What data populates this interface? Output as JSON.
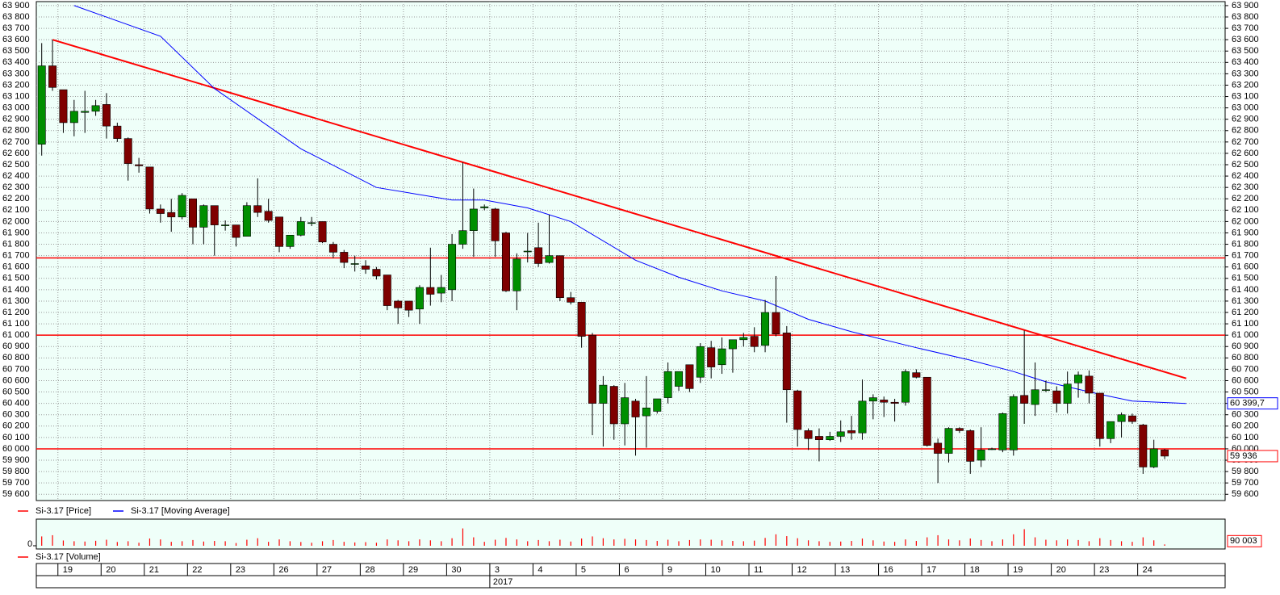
{
  "chart_data": {
    "type": "candlestick",
    "series": [
      {
        "name": "Si-3.17 [Price]",
        "color": "#ff0000",
        "up_color": "#008f00",
        "down_color": "#7f0000",
        "open": [
          62680,
          63370,
          63160,
          62870,
          62960,
          62970,
          63030,
          62840,
          62730,
          62500,
          62480,
          62110,
          62080,
          62040,
          62200,
          61950,
          62140,
          61970,
          61970,
          61870,
          62140,
          62090,
          62040,
          61780,
          61880,
          61990,
          62000,
          61800,
          61730,
          61630,
          61610,
          61580,
          61530,
          61300,
          61300,
          61230,
          61420,
          61370,
          61400,
          61800,
          61920,
          62120,
          62110,
          61900,
          61390,
          61740,
          61770,
          61640,
          61700,
          61330,
          61290,
          61000,
          60400,
          60550,
          60220,
          60420,
          60290,
          60330,
          60450,
          60550,
          60740,
          60630,
          60890,
          60740,
          60880,
          60960,
          60990,
          60910,
          61200,
          61020,
          60510,
          60160,
          60110,
          60080,
          60110,
          60160,
          60140,
          60420,
          60430,
          60410,
          60410,
          60670,
          60630,
          60050,
          59960,
          60180,
          60160,
          59900,
          60000,
          59990,
          59990,
          60470,
          60390,
          60520,
          60510,
          60400,
          60580,
          60640,
          60490,
          60090,
          60240,
          60290,
          60210,
          59840,
          59990
        ],
        "high": [
          63570,
          63600,
          63160,
          63070,
          63150,
          63070,
          63130,
          62870,
          62740,
          62560,
          62480,
          62150,
          62200,
          62250,
          62200,
          62150,
          62140,
          62010,
          61970,
          62170,
          62380,
          62200,
          62040,
          61880,
          62040,
          62040,
          62000,
          61820,
          61750,
          61700,
          61660,
          61600,
          61530,
          61310,
          61300,
          61440,
          61770,
          61530,
          61890,
          62520,
          62290,
          62150,
          62120,
          61910,
          61720,
          61900,
          61990,
          62060,
          61700,
          61380,
          61290,
          61020,
          60640,
          60560,
          60580,
          60440,
          60640,
          60440,
          60760,
          60680,
          60740,
          60930,
          60950,
          60980,
          60960,
          61020,
          61070,
          61310,
          61520,
          61080,
          60520,
          60180,
          60180,
          60150,
          60250,
          60290,
          60610,
          60480,
          60460,
          60440,
          60700,
          60700,
          60630,
          60090,
          60190,
          60190,
          60170,
          60190,
          60010,
          60320,
          60480,
          61040,
          60760,
          60600,
          60550,
          60680,
          60680,
          60690,
          60490,
          60240,
          60320,
          60310,
          60220,
          60080,
          60000
        ],
        "low": [
          62580,
          63150,
          62780,
          62750,
          62780,
          62930,
          62730,
          62700,
          62360,
          62430,
          62070,
          61990,
          61910,
          62020,
          61800,
          61800,
          61700,
          61920,
          61780,
          61870,
          62040,
          61990,
          61730,
          61760,
          61870,
          61960,
          61810,
          61680,
          61590,
          61560,
          61540,
          61490,
          61220,
          61100,
          61160,
          61100,
          61260,
          61290,
          61300,
          61760,
          61690,
          62100,
          61690,
          61380,
          61220,
          61640,
          61600,
          61630,
          61300,
          61270,
          60890,
          60120,
          60020,
          60080,
          60030,
          59940,
          60010,
          60310,
          60400,
          60510,
          60500,
          60580,
          60620,
          60660,
          60670,
          60900,
          60850,
          60850,
          60990,
          60230,
          60020,
          59990,
          59890,
          60070,
          60060,
          60080,
          60080,
          60260,
          60280,
          60240,
          60380,
          60620,
          60020,
          59700,
          59880,
          60140,
          59780,
          59840,
          59990,
          59970,
          59940,
          60220,
          60290,
          60500,
          60320,
          60310,
          60450,
          60400,
          60020,
          60050,
          60100,
          60220,
          59780,
          59830,
          59910
        ],
        "close": [
          63370,
          63180,
          62870,
          62970,
          62970,
          63020,
          62840,
          62730,
          62510,
          62490,
          62110,
          62070,
          62040,
          62230,
          61950,
          62140,
          61970,
          61970,
          61860,
          62140,
          62080,
          62010,
          61780,
          61880,
          62000,
          61990,
          61820,
          61730,
          61640,
          61630,
          61580,
          61520,
          61260,
          61240,
          61220,
          61420,
          61360,
          61420,
          61800,
          61920,
          62110,
          62130,
          61830,
          61390,
          61670,
          61740,
          61630,
          61700,
          61330,
          61290,
          60990,
          60400,
          60560,
          60220,
          60450,
          60280,
          60360,
          60440,
          60680,
          60680,
          60530,
          60900,
          60720,
          60880,
          60960,
          60980,
          60900,
          61200,
          61010,
          60520,
          60170,
          60090,
          60080,
          60110,
          60150,
          60140,
          60420,
          60450,
          60410,
          60400,
          60680,
          60630,
          60030,
          59960,
          60180,
          60160,
          59890,
          59990,
          60000,
          60310,
          60460,
          60400,
          60520,
          60520,
          60400,
          60570,
          60650,
          60490,
          60090,
          60240,
          60300,
          60240,
          59840,
          60000,
          59936
        ],
        "last_label": "59 936"
      },
      {
        "name": "Si-3.17 [Moving Average]",
        "color": "#0000ff",
        "x": [
          3,
          11,
          16,
          24,
          31,
          38,
          41,
          45,
          49,
          55,
          59,
          63,
          67,
          71,
          75,
          81,
          86,
          90,
          93,
          98,
          101,
          106
        ],
        "values": [
          63900,
          63630,
          63170,
          62640,
          62300,
          62190,
          62190,
          62120,
          62000,
          61660,
          61510,
          61390,
          61300,
          61140,
          61030,
          60890,
          60780,
          60680,
          60590,
          60480,
          60420,
          60399.7
        ],
        "last_label": "60 399,7"
      }
    ],
    "trendlines": [
      {
        "x": [
          1,
          106
        ],
        "y": [
          63600,
          60620
        ],
        "color": "#ff0000"
      }
    ],
    "hlines": {
      "values": [
        61680,
        61000,
        60000
      ],
      "color": "#ff0000"
    },
    "xlim": [
      -0.5,
      109.6
    ],
    "ylim": [
      59545,
      63935
    ],
    "xticks": [
      {
        "value": 1.5,
        "label": "19"
      },
      {
        "value": 5.5,
        "label": "20"
      },
      {
        "value": 9.5,
        "label": "21"
      },
      {
        "value": 13.5,
        "label": "22"
      },
      {
        "value": 17.5,
        "label": "23"
      },
      {
        "value": 21.5,
        "label": "26"
      },
      {
        "value": 25.5,
        "label": "27"
      },
      {
        "value": 29.5,
        "label": "28"
      },
      {
        "value": 33.5,
        "label": "29"
      },
      {
        "value": 37.5,
        "label": "30"
      },
      {
        "value": 41.5,
        "label": "3"
      },
      {
        "value": 45.5,
        "label": "4"
      },
      {
        "value": 49.5,
        "label": "5"
      },
      {
        "value": 53.5,
        "label": "6"
      },
      {
        "value": 57.5,
        "label": "9"
      },
      {
        "value": 61.5,
        "label": "10"
      },
      {
        "value": 65.5,
        "label": "11"
      },
      {
        "value": 69.5,
        "label": "12"
      },
      {
        "value": 73.5,
        "label": "13"
      },
      {
        "value": 77.5,
        "label": "16"
      },
      {
        "value": 81.5,
        "label": "17"
      },
      {
        "value": 85.5,
        "label": "18"
      },
      {
        "value": 89.5,
        "label": "19"
      },
      {
        "value": 93.5,
        "label": "20"
      },
      {
        "value": 97.5,
        "label": "23"
      },
      {
        "value": 101.5,
        "label": "24"
      }
    ],
    "year_tick": {
      "value": 41.5,
      "label": "2017"
    },
    "yticks": [
      {
        "value": 59600,
        "label": "59 600"
      },
      {
        "value": 59700,
        "label": "59 700"
      },
      {
        "value": 59800,
        "label": "59 800"
      },
      {
        "value": 59900,
        "label": "59 900"
      },
      {
        "value": 60000,
        "label": "60 000"
      },
      {
        "value": 60100,
        "label": "60 100"
      },
      {
        "value": 60200,
        "label": "60 200"
      },
      {
        "value": 60300,
        "label": "60 300"
      },
      {
        "value": 60400,
        "label": "60 400"
      },
      {
        "value": 60500,
        "label": "60 500"
      },
      {
        "value": 60600,
        "label": "60 600"
      },
      {
        "value": 60700,
        "label": "60 700"
      },
      {
        "value": 60800,
        "label": "60 800"
      },
      {
        "value": 60900,
        "label": "60 900"
      },
      {
        "value": 61000,
        "label": "61 000"
      },
      {
        "value": 61100,
        "label": "61 100"
      },
      {
        "value": 61200,
        "label": "61 200"
      },
      {
        "value": 61300,
        "label": "61 300"
      },
      {
        "value": 61400,
        "label": "61 400"
      },
      {
        "value": 61500,
        "label": "61 500"
      },
      {
        "value": 61600,
        "label": "61 600"
      },
      {
        "value": 61700,
        "label": "61 700"
      },
      {
        "value": 61800,
        "label": "61 800"
      },
      {
        "value": 61900,
        "label": "61 900"
      },
      {
        "value": 62000,
        "label": "62 000"
      },
      {
        "value": 62100,
        "label": "62 100"
      },
      {
        "value": 62200,
        "label": "62 200"
      },
      {
        "value": 62300,
        "label": "62 300"
      },
      {
        "value": 62400,
        "label": "62 400"
      },
      {
        "value": 62500,
        "label": "62 500"
      },
      {
        "value": 62600,
        "label": "62 600"
      },
      {
        "value": 62700,
        "label": "62 700"
      },
      {
        "value": 62800,
        "label": "62 800"
      },
      {
        "value": 62900,
        "label": "62 900"
      },
      {
        "value": 63000,
        "label": "63 000"
      },
      {
        "value": 63100,
        "label": "63 100"
      },
      {
        "value": 63200,
        "label": "63 200"
      },
      {
        "value": 63300,
        "label": "63 300"
      },
      {
        "value": 63400,
        "label": "63 400"
      },
      {
        "value": 63500,
        "label": "63 500"
      },
      {
        "value": 63600,
        "label": "63 600"
      },
      {
        "value": 63700,
        "label": "63 700"
      },
      {
        "value": 63800,
        "label": "63 800"
      },
      {
        "value": 63900,
        "label": "63 900"
      }
    ],
    "grid": true,
    "volume": {
      "name": "Si-3.17 [Volume]",
      "color": "#ff0000",
      "values": [
        620000,
        700000,
        350000,
        300000,
        280000,
        330000,
        400000,
        250000,
        300000,
        200000,
        480000,
        420000,
        260000,
        300000,
        380000,
        280000,
        320000,
        300000,
        180000,
        400000,
        500000,
        260000,
        420000,
        300000,
        250000,
        200000,
        300000,
        380000,
        260000,
        220000,
        240000,
        200000,
        420000,
        360000,
        300000,
        420000,
        360000,
        300000,
        500000,
        1150000,
        560000,
        260000,
        400000,
        520000,
        420000,
        300000,
        380000,
        300000,
        400000,
        280000,
        480000,
        620000,
        500000,
        420000,
        460000,
        420000,
        380000,
        320000,
        400000,
        300000,
        380000,
        420000,
        400000,
        360000,
        320000,
        300000,
        340000,
        520000,
        760000,
        640000,
        500000,
        360000,
        300000,
        260000,
        280000,
        320000,
        480000,
        360000,
        280000,
        260000,
        420000,
        320000,
        560000,
        700000,
        420000,
        360000,
        480000,
        380000,
        300000,
        420000,
        760000,
        1100000,
        560000,
        400000,
        360000,
        420000,
        380000,
        300000,
        500000,
        380000,
        300000,
        260000,
        560000,
        360000,
        90003
      ],
      "last_label": "90 003",
      "ylim": [
        0,
        1500000
      ],
      "yticks": [
        0
      ]
    }
  }
}
